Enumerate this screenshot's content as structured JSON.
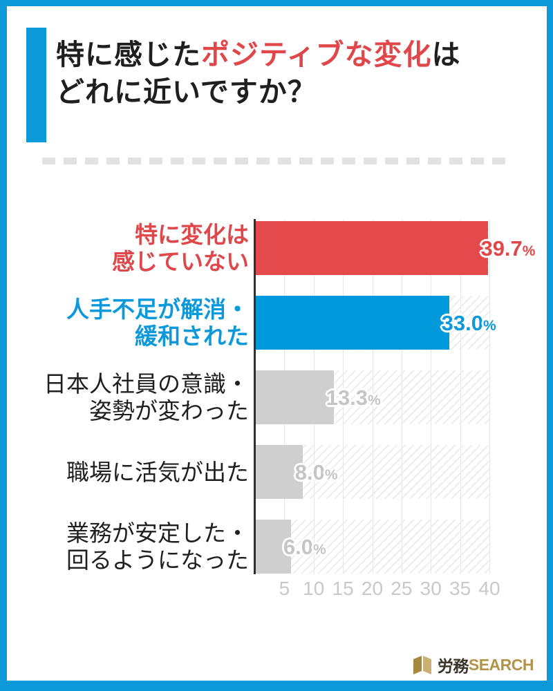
{
  "header": {
    "title_part1": "特に感じた",
    "title_highlight": "ポジティブな変化",
    "title_part2": "は",
    "title_line2": "どれに近いですか？"
  },
  "colors": {
    "frame_blue": "#0c99d9",
    "bar_red": "#e4494b",
    "bar_blue": "#0099dc",
    "bar_gray": "#cfcfcf",
    "value_gray": "#c5c5c5",
    "axis_dark": "#2f2f2f",
    "grid_gray": "#e7e7e7",
    "tick_gray": "#c9c9c9",
    "text_dark": "#1f1f1f",
    "highlight_red": "#e0474a"
  },
  "chart_data": {
    "type": "bar",
    "orientation": "horizontal",
    "title": "特に感じたポジティブな変化はどれに近いですか？",
    "xlim": [
      0,
      40
    ],
    "ticks": [
      "5",
      "10",
      "15",
      "20",
      "25",
      "30",
      "35",
      "40"
    ],
    "tick_values": [
      5,
      10,
      15,
      20,
      25,
      30,
      35,
      40
    ],
    "grid": true,
    "categories": [
      "特に変化は感じていない",
      "人手不足が解消・緩和された",
      "日本人社員の意識・姿勢が変わった",
      "職場に活気が出た",
      "業務が安定した・回るようになった"
    ],
    "values": [
      39.7,
      33.0,
      13.3,
      8.0,
      6.0
    ],
    "rows": [
      {
        "label_lines": [
          "特に変化は",
          "感じていない"
        ],
        "label_color": "#e0474a",
        "label_bold": true,
        "value": 39.7,
        "value_text": "39.7",
        "percent": "%",
        "bar_color": "#e4494b",
        "value_color": "#e0474a"
      },
      {
        "label_lines": [
          "人手不足が解消・",
          "緩和された"
        ],
        "label_color": "#0b99dc",
        "label_bold": true,
        "value": 33.0,
        "value_text": "33.0",
        "percent": "%",
        "bar_color": "#0099dc",
        "value_color": "#0b99dc"
      },
      {
        "label_lines": [
          "日本人社員の意識・",
          "姿勢が変わった"
        ],
        "label_color": "#1f1f1f",
        "label_bold": false,
        "value": 13.3,
        "value_text": "13.3",
        "percent": "%",
        "bar_color": "#cfcfcf",
        "value_color": "#c5c5c5"
      },
      {
        "label_lines": [
          "職場に活気が出た"
        ],
        "label_color": "#1f1f1f",
        "label_bold": false,
        "value": 8.0,
        "value_text": "8.0",
        "percent": "%",
        "bar_color": "#cfcfcf",
        "value_color": "#c5c5c5"
      },
      {
        "label_lines": [
          "業務が安定した・",
          "回るようになった"
        ],
        "label_color": "#1f1f1f",
        "label_bold": false,
        "value": 6.0,
        "value_text": "6.0",
        "percent": "%",
        "bar_color": "#cfcfcf",
        "value_color": "#c5c5c5"
      }
    ]
  },
  "footer": {
    "logo_dark": "労務",
    "logo_gold": "SEARCH"
  }
}
